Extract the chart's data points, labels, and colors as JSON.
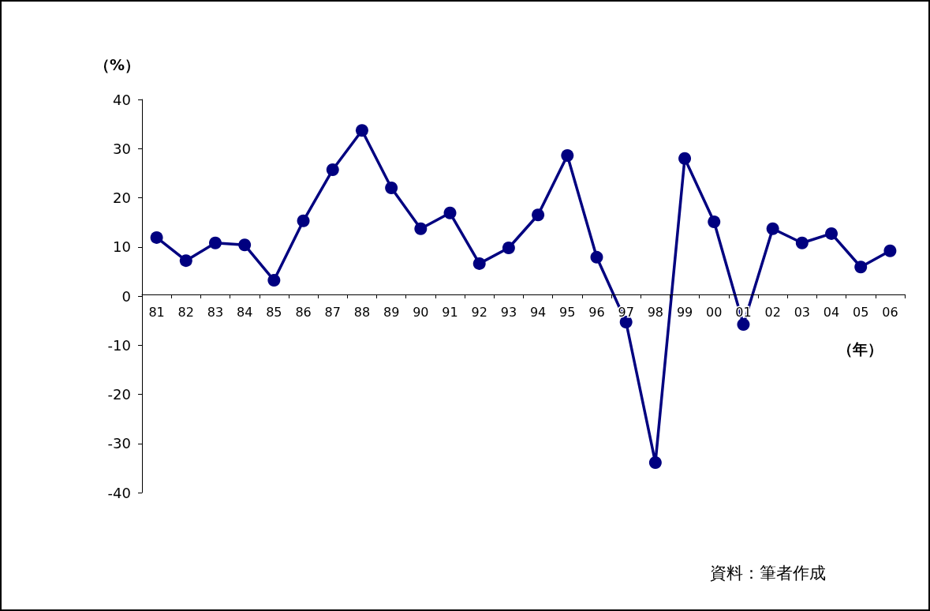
{
  "chart_data": {
    "type": "line",
    "xlabel": "（年）",
    "ylabel": "（%）",
    "categories": [
      "81",
      "82",
      "83",
      "84",
      "85",
      "86",
      "87",
      "88",
      "89",
      "90",
      "91",
      "92",
      "93",
      "94",
      "95",
      "96",
      "97",
      "98",
      "99",
      "00",
      "01",
      "02",
      "03",
      "04",
      "05",
      "06"
    ],
    "series": [
      {
        "color": "#000080",
        "values": [
          11.9,
          7.2,
          10.8,
          10.4,
          3.2,
          15.3,
          25.7,
          33.7,
          22.0,
          13.7,
          16.9,
          6.6,
          9.8,
          16.5,
          28.6,
          7.9,
          -5.3,
          -33.9,
          28.0,
          15.1,
          -5.8,
          13.7,
          10.8,
          12.7,
          5.9,
          9.2
        ]
      }
    ],
    "ylim": [
      -40,
      40
    ],
    "yticks": [
      -40,
      -30,
      -20,
      -10,
      0,
      10,
      20,
      30,
      40
    ],
    "marker": "circle",
    "line_style": "solid",
    "annotations": [
      "資料：筆者作成"
    ]
  }
}
